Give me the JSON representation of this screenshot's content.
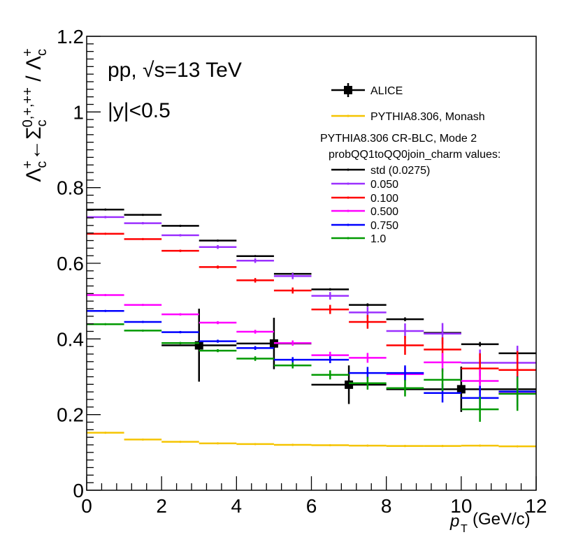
{
  "chart_data": {
    "type": "scatter",
    "title": "",
    "xlabel_var": "p",
    "xlabel_sub": "T",
    "xlabel_unit": "(GeV/c)",
    "xlim": [
      0,
      12
    ],
    "ylim": [
      0,
      1.2
    ],
    "x_ticks": [
      "0",
      "2",
      "4",
      "6",
      "8",
      "10",
      "12"
    ],
    "y_ticks": [
      "0",
      "0.2",
      "0.4",
      "0.6",
      "0.8",
      "1",
      "1.2"
    ],
    "annotation_line1": "pp, √s=13 TeV",
    "annotation_line2": "|y|<0.5",
    "legend_header1": "PYTHIA8.306 CR-BLC, Mode 2",
    "legend_header2": "probQQ1toQQ0join_charm values:",
    "series": [
      {
        "name": "ALICE",
        "color": "#000000",
        "style": "data",
        "points": [
          {
            "x": 3,
            "xlo": 2,
            "xhi": 4,
            "y": 0.383,
            "ylo": 0.287,
            "yhi": 0.48
          },
          {
            "x": 5,
            "xlo": 4,
            "xhi": 6,
            "y": 0.388,
            "ylo": 0.32,
            "yhi": 0.456
          },
          {
            "x": 7,
            "xlo": 6,
            "xhi": 8,
            "y": 0.279,
            "ylo": 0.228,
            "yhi": 0.33
          },
          {
            "x": 10,
            "xlo": 8,
            "xhi": 12,
            "y": 0.267,
            "ylo": 0.207,
            "yhi": 0.327
          }
        ]
      },
      {
        "name": "PYTHIA8.306, Monash",
        "color": "#f5c400",
        "style": "mc",
        "points": [
          {
            "x": 0.5,
            "xlo": 0,
            "xhi": 1,
            "y": 0.152,
            "err": 0.002
          },
          {
            "x": 1.5,
            "xlo": 1,
            "xhi": 2,
            "y": 0.134,
            "err": 0.001
          },
          {
            "x": 2.5,
            "xlo": 2,
            "xhi": 3,
            "y": 0.128,
            "err": 0.001
          },
          {
            "x": 3.5,
            "xlo": 3,
            "xhi": 4,
            "y": 0.124,
            "err": 0.001
          },
          {
            "x": 4.5,
            "xlo": 4,
            "xhi": 5,
            "y": 0.122,
            "err": 0.001
          },
          {
            "x": 5.5,
            "xlo": 5,
            "xhi": 6,
            "y": 0.12,
            "err": 0.001
          },
          {
            "x": 6.5,
            "xlo": 6,
            "xhi": 7,
            "y": 0.119,
            "err": 0.001
          },
          {
            "x": 7.5,
            "xlo": 7,
            "xhi": 8,
            "y": 0.118,
            "err": 0.001
          },
          {
            "x": 8.5,
            "xlo": 8,
            "xhi": 9,
            "y": 0.117,
            "err": 0.001
          },
          {
            "x": 9.5,
            "xlo": 9,
            "xhi": 10,
            "y": 0.117,
            "err": 0.001
          },
          {
            "x": 10.5,
            "xlo": 10,
            "xhi": 11,
            "y": 0.118,
            "err": 0.001
          },
          {
            "x": 11.5,
            "xlo": 11,
            "xhi": 12,
            "y": 0.116,
            "err": 0.001
          }
        ]
      },
      {
        "name": "std (0.0275)",
        "color": "#000000",
        "style": "mc",
        "points": [
          {
            "x": 0.5,
            "xlo": 0,
            "xhi": 1,
            "y": 0.742,
            "err": 0.002
          },
          {
            "x": 1.5,
            "xlo": 1,
            "xhi": 2,
            "y": 0.728,
            "err": 0.002
          },
          {
            "x": 2.5,
            "xlo": 2,
            "xhi": 3,
            "y": 0.699,
            "err": 0.002
          },
          {
            "x": 3.5,
            "xlo": 3,
            "xhi": 4,
            "y": 0.66,
            "err": 0.002
          },
          {
            "x": 4.5,
            "xlo": 4,
            "xhi": 5,
            "y": 0.619,
            "err": 0.002
          },
          {
            "x": 5.5,
            "xlo": 5,
            "xhi": 6,
            "y": 0.572,
            "err": 0.003
          },
          {
            "x": 6.5,
            "xlo": 6,
            "xhi": 7,
            "y": 0.531,
            "err": 0.003
          },
          {
            "x": 7.5,
            "xlo": 7,
            "xhi": 8,
            "y": 0.49,
            "err": 0.004
          },
          {
            "x": 8.5,
            "xlo": 8,
            "xhi": 9,
            "y": 0.452,
            "err": 0.005
          },
          {
            "x": 9.5,
            "xlo": 9,
            "xhi": 10,
            "y": 0.416,
            "err": 0.005
          },
          {
            "x": 10.5,
            "xlo": 10,
            "xhi": 11,
            "y": 0.386,
            "err": 0.006
          },
          {
            "x": 11.5,
            "xlo": 11,
            "xhi": 12,
            "y": 0.362,
            "err": 0.007
          }
        ]
      },
      {
        "name": "0.050",
        "color": "#9b30ff",
        "style": "mc",
        "points": [
          {
            "x": 0.5,
            "xlo": 0,
            "xhi": 1,
            "y": 0.722,
            "err": 0.003
          },
          {
            "x": 1.5,
            "xlo": 1,
            "xhi": 2,
            "y": 0.706,
            "err": 0.003
          },
          {
            "x": 2.5,
            "xlo": 2,
            "xhi": 3,
            "y": 0.674,
            "err": 0.003
          },
          {
            "x": 3.5,
            "xlo": 3,
            "xhi": 4,
            "y": 0.643,
            "err": 0.005
          },
          {
            "x": 4.5,
            "xlo": 4,
            "xhi": 5,
            "y": 0.607,
            "err": 0.006
          },
          {
            "x": 5.5,
            "xlo": 5,
            "xhi": 6,
            "y": 0.566,
            "err": 0.008
          },
          {
            "x": 6.5,
            "xlo": 6,
            "xhi": 7,
            "y": 0.514,
            "err": 0.01
          },
          {
            "x": 7.5,
            "xlo": 7,
            "xhi": 8,
            "y": 0.47,
            "err": 0.015
          },
          {
            "x": 8.5,
            "xlo": 8,
            "xhi": 9,
            "y": 0.421,
            "err": 0.02
          },
          {
            "x": 9.5,
            "xlo": 9,
            "xhi": 10,
            "y": 0.414,
            "err": 0.028
          },
          {
            "x": 10.5,
            "xlo": 10,
            "xhi": 11,
            "y": 0.337,
            "err": 0.035
          },
          {
            "x": 11.5,
            "xlo": 11,
            "xhi": 12,
            "y": 0.337,
            "err": 0.045
          }
        ]
      },
      {
        "name": "0.100",
        "color": "#ff0000",
        "style": "mc",
        "points": [
          {
            "x": 0.5,
            "xlo": 0,
            "xhi": 1,
            "y": 0.678,
            "err": 0.002
          },
          {
            "x": 1.5,
            "xlo": 1,
            "xhi": 2,
            "y": 0.664,
            "err": 0.002
          },
          {
            "x": 2.5,
            "xlo": 2,
            "xhi": 3,
            "y": 0.633,
            "err": 0.003
          },
          {
            "x": 3.5,
            "xlo": 3,
            "xhi": 4,
            "y": 0.59,
            "err": 0.004
          },
          {
            "x": 4.5,
            "xlo": 4,
            "xhi": 5,
            "y": 0.555,
            "err": 0.006
          },
          {
            "x": 5.5,
            "xlo": 5,
            "xhi": 6,
            "y": 0.528,
            "err": 0.008
          },
          {
            "x": 6.5,
            "xlo": 6,
            "xhi": 7,
            "y": 0.478,
            "err": 0.012
          },
          {
            "x": 7.5,
            "xlo": 7,
            "xhi": 8,
            "y": 0.445,
            "err": 0.018
          },
          {
            "x": 8.5,
            "xlo": 8,
            "xhi": 9,
            "y": 0.383,
            "err": 0.025
          },
          {
            "x": 9.5,
            "xlo": 9,
            "xhi": 10,
            "y": 0.372,
            "err": 0.032
          },
          {
            "x": 10.5,
            "xlo": 10,
            "xhi": 11,
            "y": 0.322,
            "err": 0.04
          },
          {
            "x": 11.5,
            "xlo": 11,
            "xhi": 12,
            "y": 0.318,
            "err": 0.05
          }
        ]
      },
      {
        "name": "0.500",
        "color": "#ff00ff",
        "style": "mc",
        "points": [
          {
            "x": 0.5,
            "xlo": 0,
            "xhi": 1,
            "y": 0.516,
            "err": 0.002
          },
          {
            "x": 1.5,
            "xlo": 1,
            "xhi": 2,
            "y": 0.49,
            "err": 0.002
          },
          {
            "x": 2.5,
            "xlo": 2,
            "xhi": 3,
            "y": 0.465,
            "err": 0.003
          },
          {
            "x": 3.5,
            "xlo": 3,
            "xhi": 4,
            "y": 0.443,
            "err": 0.004
          },
          {
            "x": 4.5,
            "xlo": 4,
            "xhi": 5,
            "y": 0.419,
            "err": 0.005
          },
          {
            "x": 5.5,
            "xlo": 5,
            "xhi": 6,
            "y": 0.389,
            "err": 0.007
          },
          {
            "x": 6.5,
            "xlo": 6,
            "xhi": 7,
            "y": 0.357,
            "err": 0.009
          },
          {
            "x": 7.5,
            "xlo": 7,
            "xhi": 8,
            "y": 0.35,
            "err": 0.013
          },
          {
            "x": 8.5,
            "xlo": 8,
            "xhi": 9,
            "y": 0.307,
            "err": 0.018
          },
          {
            "x": 9.5,
            "xlo": 9,
            "xhi": 10,
            "y": 0.338,
            "err": 0.025
          },
          {
            "x": 10.5,
            "xlo": 10,
            "xhi": 11,
            "y": 0.289,
            "err": 0.032
          },
          {
            "x": 11.5,
            "xlo": 11,
            "xhi": 12,
            "y": 0.256,
            "err": 0.04
          }
        ]
      },
      {
        "name": "0.750",
        "color": "#0000ff",
        "style": "mc",
        "points": [
          {
            "x": 0.5,
            "xlo": 0,
            "xhi": 1,
            "y": 0.474,
            "err": 0.002
          },
          {
            "x": 1.5,
            "xlo": 1,
            "xhi": 2,
            "y": 0.445,
            "err": 0.002
          },
          {
            "x": 2.5,
            "xlo": 2,
            "xhi": 3,
            "y": 0.418,
            "err": 0.003
          },
          {
            "x": 3.5,
            "xlo": 3,
            "xhi": 4,
            "y": 0.394,
            "err": 0.004
          },
          {
            "x": 4.5,
            "xlo": 4,
            "xhi": 5,
            "y": 0.376,
            "err": 0.005
          },
          {
            "x": 5.5,
            "xlo": 5,
            "xhi": 6,
            "y": 0.345,
            "err": 0.007
          },
          {
            "x": 6.5,
            "xlo": 6,
            "xhi": 7,
            "y": 0.345,
            "err": 0.009
          },
          {
            "x": 7.5,
            "xlo": 7,
            "xhi": 8,
            "y": 0.31,
            "err": 0.016
          },
          {
            "x": 8.5,
            "xlo": 8,
            "xhi": 9,
            "y": 0.31,
            "err": 0.02
          },
          {
            "x": 9.5,
            "xlo": 9,
            "xhi": 10,
            "y": 0.257,
            "err": 0.025
          },
          {
            "x": 10.5,
            "xlo": 10,
            "xhi": 11,
            "y": 0.244,
            "err": 0.032
          },
          {
            "x": 11.5,
            "xlo": 11,
            "xhi": 12,
            "y": 0.261,
            "err": 0.04
          }
        ]
      },
      {
        "name": "1.0",
        "color": "#009900",
        "style": "mc",
        "points": [
          {
            "x": 0.5,
            "xlo": 0,
            "xhi": 1,
            "y": 0.439,
            "err": 0.002
          },
          {
            "x": 1.5,
            "xlo": 1,
            "xhi": 2,
            "y": 0.422,
            "err": 0.002
          },
          {
            "x": 2.5,
            "xlo": 2,
            "xhi": 3,
            "y": 0.389,
            "err": 0.003
          },
          {
            "x": 3.5,
            "xlo": 3,
            "xhi": 4,
            "y": 0.369,
            "err": 0.004
          },
          {
            "x": 4.5,
            "xlo": 4,
            "xhi": 5,
            "y": 0.348,
            "err": 0.006
          },
          {
            "x": 5.5,
            "xlo": 5,
            "xhi": 6,
            "y": 0.33,
            "err": 0.008
          },
          {
            "x": 6.5,
            "xlo": 6,
            "xhi": 7,
            "y": 0.305,
            "err": 0.012
          },
          {
            "x": 7.5,
            "xlo": 7,
            "xhi": 8,
            "y": 0.283,
            "err": 0.017
          },
          {
            "x": 8.5,
            "xlo": 8,
            "xhi": 9,
            "y": 0.27,
            "err": 0.022
          },
          {
            "x": 9.5,
            "xlo": 9,
            "xhi": 10,
            "y": 0.292,
            "err": 0.03
          },
          {
            "x": 10.5,
            "xlo": 10,
            "xhi": 11,
            "y": 0.214,
            "err": 0.033
          },
          {
            "x": 11.5,
            "xlo": 11,
            "xhi": 12,
            "y": 0.255,
            "err": 0.045
          }
        ]
      }
    ]
  }
}
